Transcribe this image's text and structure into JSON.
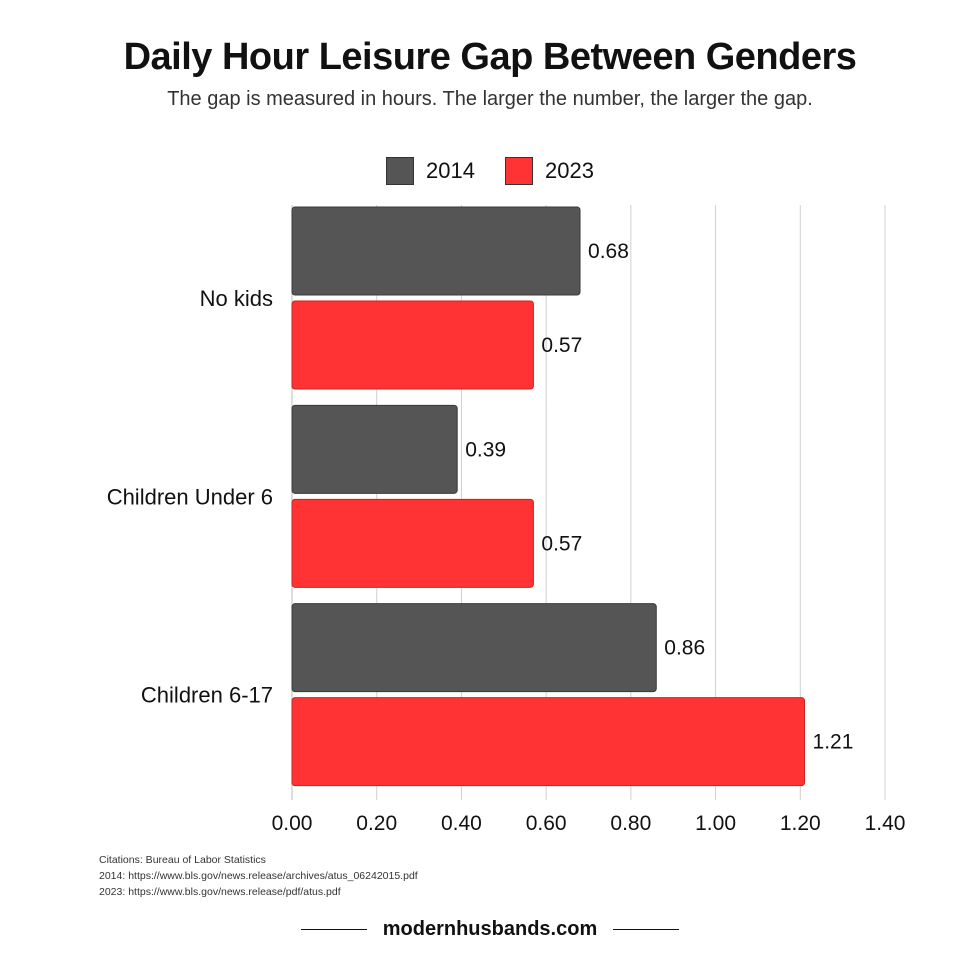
{
  "header": {
    "title": "Daily Hour Leisure Gap Between Genders",
    "subtitle": "The gap is measured in hours. The larger the number, the larger the gap."
  },
  "legend": [
    {
      "label": "2014",
      "color": "#555555"
    },
    {
      "label": "2023",
      "color": "#ff3333"
    }
  ],
  "chart_data": {
    "type": "bar",
    "orientation": "horizontal",
    "categories": [
      "No kids",
      "Children Under 6",
      "Children 6-17"
    ],
    "series": [
      {
        "name": "2014",
        "values": [
          0.68,
          0.39,
          0.86
        ],
        "color": "#555555"
      },
      {
        "name": "2023",
        "values": [
          0.57,
          0.57,
          1.21
        ],
        "color": "#ff3333"
      }
    ],
    "xlim": [
      0,
      1.4
    ],
    "xticks": [
      "0.00",
      "0.20",
      "0.40",
      "0.60",
      "0.80",
      "1.00",
      "1.20",
      "1.40"
    ],
    "data_labels": [
      [
        "0.68",
        "0.39",
        "0.86"
      ],
      [
        "0.57",
        "0.57",
        "1.21"
      ]
    ],
    "grid": "vertical",
    "legend_position": "top"
  },
  "citations": {
    "line1": "Citations: Bureau of Labor Statistics",
    "line2": "2014: https://www.bls.gov/news.release/archives/atus_06242015.pdf",
    "line3": "2023: https://www.bls.gov/news.release/pdf/atus.pdf"
  },
  "footer": {
    "site": "modernhusbands.com"
  }
}
